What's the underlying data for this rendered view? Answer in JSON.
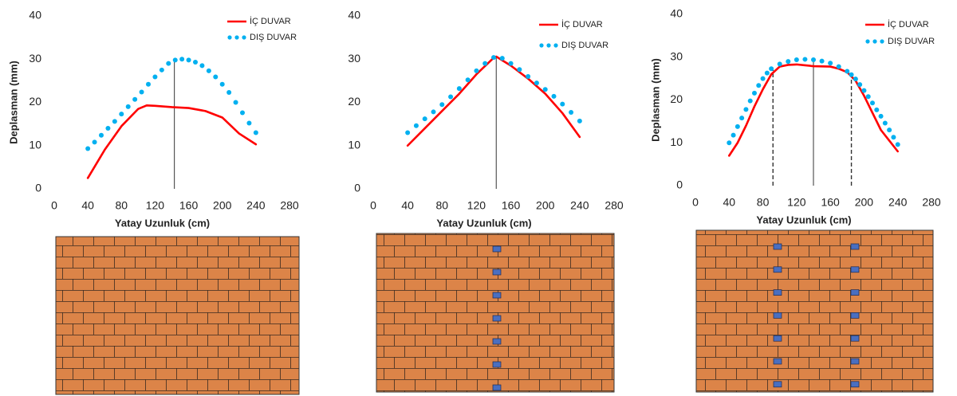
{
  "chart_data": [
    {
      "type": "line",
      "ylabel": "Deplasman (mm)",
      "xlabel": "Yatay  Uzunluk (cm)",
      "xlim": [
        0,
        280
      ],
      "xticks": [
        0,
        40,
        80,
        120,
        160,
        200,
        240,
        280
      ],
      "ylim": [
        0,
        40
      ],
      "yticks": [
        0,
        10,
        20,
        30,
        40
      ],
      "grid": false,
      "legend": "top-right",
      "reference_lines": [
        {
          "x": 143,
          "style": "solid"
        }
      ],
      "series": [
        {
          "name": "İÇ DUVAR",
          "color": "#ff0000",
          "style": "solid",
          "x": [
            40,
            60,
            80,
            100,
            110,
            120,
            140,
            160,
            180,
            200,
            220,
            240
          ],
          "values": [
            2.5,
            9,
            14.5,
            18.5,
            19.3,
            19.2,
            18.9,
            18.7,
            18,
            16.5,
            12.8,
            10.3
          ]
        },
        {
          "name": "DIŞ DUVAR",
          "color": "#00b0f0",
          "style": "dots",
          "x": [
            40,
            48,
            56,
            64,
            72,
            80,
            88,
            96,
            104,
            112,
            120,
            128,
            136,
            144,
            152,
            160,
            168,
            176,
            184,
            192,
            200,
            208,
            216,
            224,
            232,
            240
          ],
          "values": [
            9.3,
            10.8,
            12.4,
            14,
            15.6,
            17.3,
            19,
            20.7,
            22.4,
            24.2,
            25.9,
            27.5,
            29,
            29.8,
            30,
            29.8,
            29.3,
            28.5,
            27.3,
            25.9,
            24.2,
            22.3,
            20,
            17.6,
            15.2,
            13
          ]
        }
      ]
    },
    {
      "type": "line",
      "xlabel": "Yatay Uzunluk (cm)",
      "xlim": [
        0,
        280
      ],
      "xticks": [
        0,
        40,
        80,
        120,
        160,
        200,
        240,
        280
      ],
      "ylim": [
        0,
        40
      ],
      "yticks": [
        0,
        10,
        20,
        30,
        40
      ],
      "grid": false,
      "legend": "top-right",
      "reference_lines": [
        {
          "x": 143,
          "style": "solid"
        }
      ],
      "series": [
        {
          "name": "İÇ DUVAR",
          "color": "#ff0000",
          "style": "solid",
          "x": [
            40,
            60,
            80,
            100,
            120,
            140,
            143,
            160,
            180,
            200,
            220,
            240
          ],
          "values": [
            10,
            14,
            18,
            22,
            26.5,
            30.3,
            30.6,
            28.5,
            25.5,
            22,
            17.5,
            12
          ]
        },
        {
          "name": "DIŞ DUVAR",
          "color": "#00b0f0",
          "style": "dots",
          "x": [
            40,
            50,
            60,
            70,
            80,
            90,
            100,
            110,
            120,
            130,
            140,
            150,
            160,
            170,
            180,
            190,
            200,
            210,
            220,
            230,
            240
          ],
          "values": [
            13,
            14.6,
            16.2,
            17.8,
            19.5,
            21.3,
            23.2,
            25.2,
            27.3,
            29,
            30.4,
            30.2,
            29,
            27.6,
            26,
            24.5,
            23,
            21.4,
            19.6,
            17.7,
            15.7
          ]
        }
      ]
    },
    {
      "type": "line",
      "ylabel": "Deplasman (mm)",
      "xlabel": "Yatay Uzunluk (cm)",
      "xlim": [
        0,
        280
      ],
      "xticks": [
        0,
        40,
        80,
        120,
        160,
        200,
        240,
        280
      ],
      "ylim": [
        0,
        40
      ],
      "yticks": [
        0,
        10,
        20,
        30,
        40
      ],
      "grid": false,
      "legend": "top-right",
      "reference_lines": [
        {
          "x": 92,
          "style": "dashed"
        },
        {
          "x": 140,
          "style": "solid"
        },
        {
          "x": 185,
          "style": "dashed"
        }
      ],
      "series": [
        {
          "name": "İÇ DUVAR",
          "color": "#ff0000",
          "style": "solid",
          "x": [
            40,
            50,
            60,
            70,
            80,
            90,
            100,
            110,
            120,
            130,
            140,
            160,
            170,
            180,
            190,
            200,
            210,
            220,
            230,
            240
          ],
          "values": [
            7,
            10,
            14,
            18.5,
            22.5,
            26,
            27.8,
            28.2,
            28.3,
            28.1,
            27.9,
            27.8,
            27.3,
            26.5,
            24.5,
            21,
            17,
            13,
            10.5,
            8
          ]
        },
        {
          "name": "DIŞ DUVAR",
          "color": "#00b0f0",
          "style": "dots",
          "x": [
            40,
            45,
            50,
            55,
            60,
            65,
            70,
            75,
            80,
            85,
            90,
            100,
            110,
            120,
            130,
            140,
            150,
            160,
            170,
            180,
            185,
            190,
            195,
            200,
            205,
            210,
            215,
            220,
            225,
            230,
            235,
            240
          ],
          "values": [
            10,
            11.8,
            13.8,
            15.8,
            17.8,
            19.8,
            21.6,
            23.4,
            25,
            26.3,
            27.3,
            28.4,
            29,
            29.4,
            29.5,
            29.4,
            29.1,
            28.6,
            27.8,
            26.7,
            25.9,
            24.9,
            23.6,
            22.2,
            20.8,
            19.3,
            17.7,
            16.2,
            14.6,
            13,
            11.3,
            9.6
          ]
        }
      ]
    }
  ]
}
